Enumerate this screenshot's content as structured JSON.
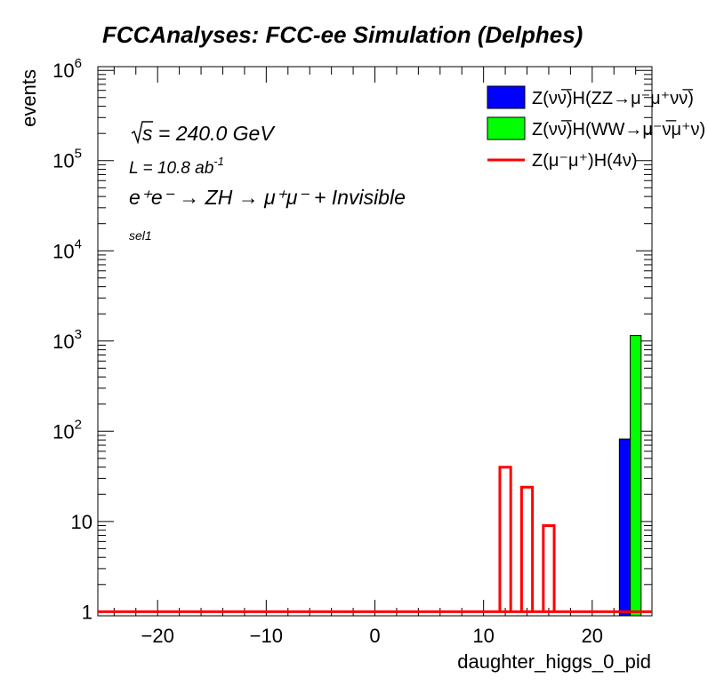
{
  "chart_data": {
    "type": "bar",
    "title": "FCCAnalyses: FCC-ee Simulation (Delphes)",
    "xlabel": "daughter_higgs_0_pid",
    "ylabel": "events",
    "xlim": [
      -25.5,
      25.5
    ],
    "ylim": [
      0.9,
      1100000
    ],
    "yscale": "log",
    "xticks": [
      -20,
      -10,
      0,
      10,
      20
    ],
    "xtick_labels": [
      "−20",
      "−10",
      "0",
      "10",
      "20"
    ],
    "yticks": [
      {
        "value": 1,
        "base": "1",
        "exp": ""
      },
      {
        "value": 10,
        "base": "10",
        "exp": ""
      },
      {
        "value": 100,
        "base": "10",
        "exp": "2"
      },
      {
        "value": 1000,
        "base": "10",
        "exp": "3"
      },
      {
        "value": 10000,
        "base": "10",
        "exp": "4"
      },
      {
        "value": 100000,
        "base": "10",
        "exp": "5"
      },
      {
        "value": 1000000,
        "base": "10",
        "exp": "6"
      }
    ],
    "annotations": {
      "sqrt_s": "s = 240.0 GeV",
      "lumi": "L = 10.8 ab",
      "lumi_exp": "-1",
      "process": "e⁺e⁻ → ZH → μ⁺μ⁻ + Invisible",
      "selection": "sel1"
    },
    "legend_position": "top-right",
    "series": [
      {
        "name": "Z(νν̅)H(ZZ→μ⁻μ⁺νν̅)",
        "style": "filled",
        "color": "#0000ff",
        "bins": [
          {
            "x0": 22.5,
            "x1": 23.5,
            "y": 82
          }
        ]
      },
      {
        "name": "Z(νν̅)H(WW→μ⁻ν̅μ⁺ν)",
        "style": "filled",
        "color": "#00ff00",
        "bins": [
          {
            "x0": 23.5,
            "x1": 24.5,
            "y": 1150
          }
        ]
      },
      {
        "name": "Z(μ⁻μ⁺)H(4ν)",
        "style": "line",
        "color": "#ff0000",
        "bins": [
          {
            "x0": 11.5,
            "x1": 12.5,
            "y": 40
          },
          {
            "x0": 13.5,
            "x1": 14.5,
            "y": 24
          },
          {
            "x0": 15.5,
            "x1": 16.5,
            "y": 9
          }
        ]
      }
    ]
  }
}
